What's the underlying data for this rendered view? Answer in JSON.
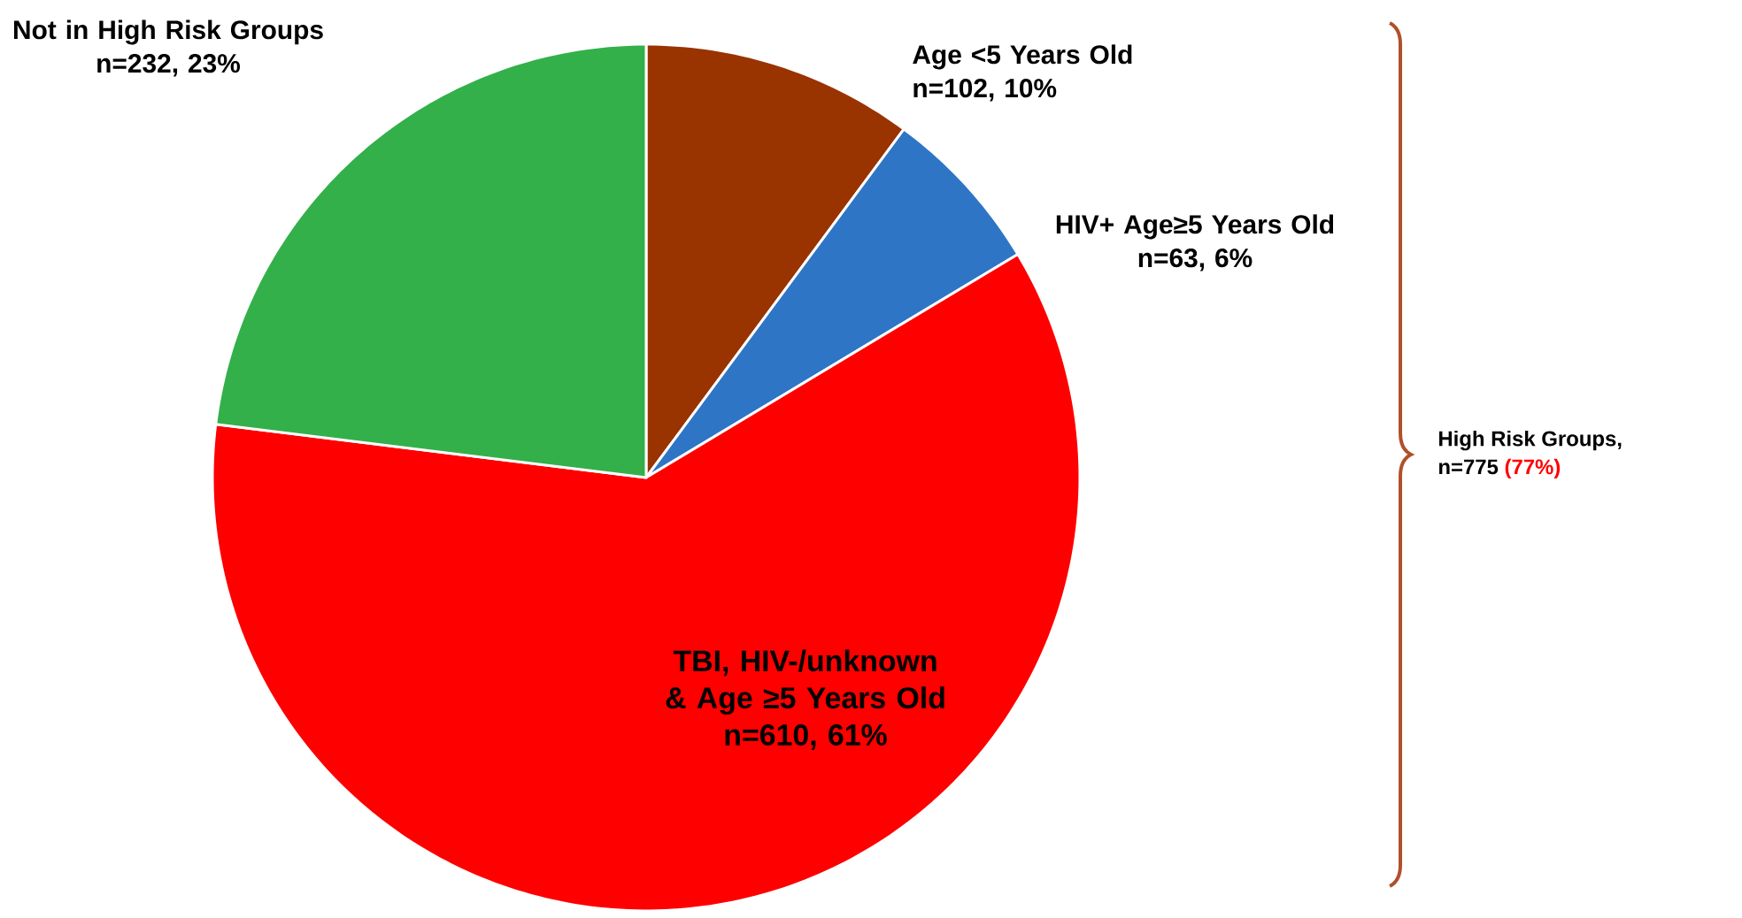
{
  "chart_data": {
    "type": "pie",
    "categories": [
      "Age <5 Years Old",
      "HIV+ Age≥5 Years Old",
      "TBI, HIV-/unknown & Age ≥5 Years Old",
      "Not in High Risk Groups"
    ],
    "values": [
      102,
      63,
      610,
      232
    ],
    "value_labels": [
      "n=102, **10%**",
      "n=63, **6%**",
      "n=610, **61%**",
      "n=232, **23%**"
    ],
    "colors": [
      "#993300",
      "#2e75c6",
      "#ff0000",
      "#33b04a"
    ],
    "annotations": [
      "High Risk Groups,",
      "n=775",
      "(77%)"
    ]
  }
}
